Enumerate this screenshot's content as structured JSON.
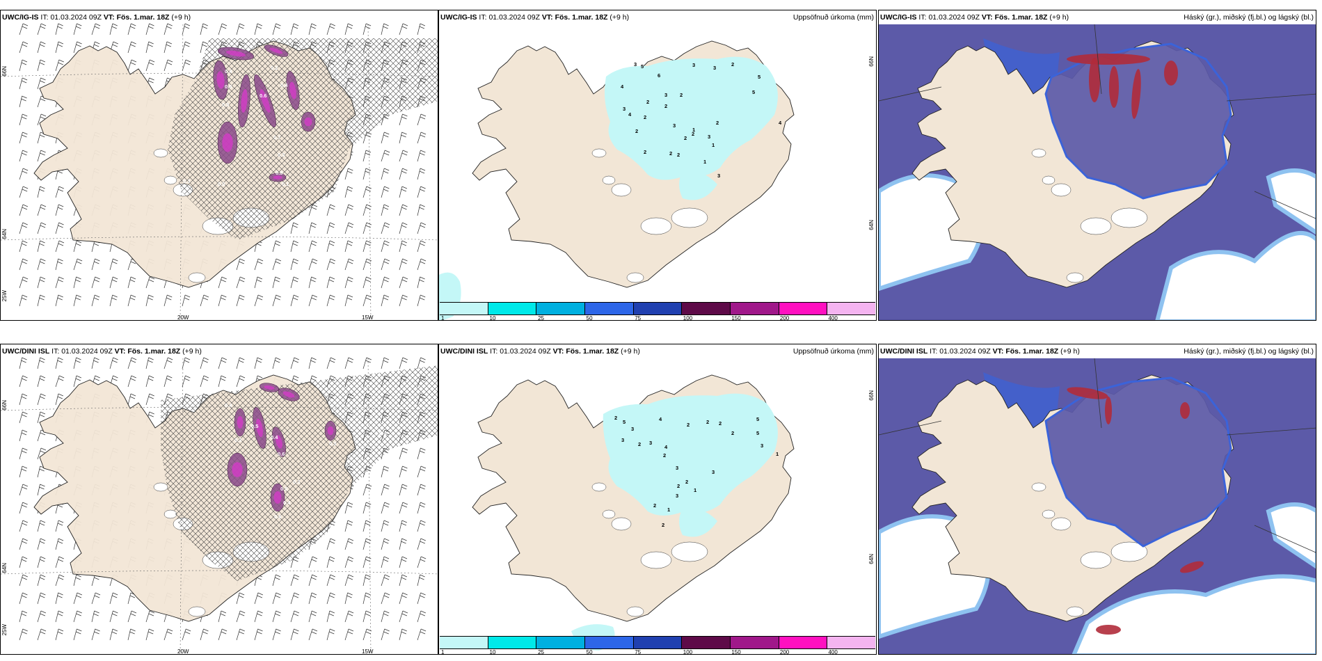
{
  "colors": {
    "land": "#f2e6d6",
    "precip_light": "#c4f7f7",
    "cloud_high": "#5c5aa8",
    "cloud_mid": "#3b63d9",
    "cloud_low": "#8ec2f0",
    "cloud_red": "#b02b3a",
    "purple": "#8a4a8a",
    "purple_bright": "#d33cc7"
  },
  "colorbar": {
    "labels": [
      "1",
      "10",
      "25",
      "50",
      "75",
      "100",
      "150",
      "200",
      "400"
    ],
    "colors": [
      "#c4f7f7",
      "#00e9e9",
      "#00b0e0",
      "#2d66e8",
      "#2040b0",
      "#5e0a48",
      "#a0188a",
      "#ff10c0",
      "#f4b4f0"
    ]
  },
  "rows": [
    {
      "id": "igis",
      "model": "UWC/IG-IS",
      "it_label": "IT:",
      "it_value": "01.03.2024 09Z",
      "vt_label": "VT: Fös. 1.mar. 18Z",
      "lead": "(+9 h)",
      "panels": [
        {
          "kind": "wind",
          "right_title": "",
          "axis": {
            "bottom_left": "20W",
            "bottom_right": "15W",
            "left_top": "66N",
            "left_mid": "64N",
            "left_bottom": "25W",
            "right_top": "",
            "right_mid": ""
          },
          "labels": [
            "0.4",
            "0.2",
            "0.8",
            "0.5",
            "0.6",
            "0.4",
            "0.7",
            "0.3",
            "0.8",
            "0.1",
            "0.0",
            "0.3",
            "0.4",
            "1.0"
          ]
        },
        {
          "kind": "precip",
          "right_title": "Uppsöfnuð úrkoma (mm)",
          "axis": {
            "right_top": "66N",
            "right_mid": "64N"
          },
          "labels": [
            "3",
            "5",
            "6",
            "3",
            "3",
            "2",
            "4",
            "3",
            "2",
            "2",
            "3",
            "4",
            "2",
            "2",
            "3",
            "2",
            "2",
            "3",
            "2",
            "1",
            "1",
            "2",
            "2",
            "2",
            "2",
            "5",
            "5",
            "4",
            "1",
            "3"
          ]
        },
        {
          "kind": "cloud",
          "right_title": "Háský (gr.), miðský (fj.bl.) og lágský (bl.)"
        }
      ]
    },
    {
      "id": "dini",
      "model": "UWC/DINI ISL",
      "it_label": "IT:",
      "it_value": "01.03.2024 09Z",
      "vt_label": "VT: Fös. 1.mar. 18Z",
      "lead": "(+9 h)",
      "panels": [
        {
          "kind": "wind",
          "right_title": "",
          "axis": {
            "bottom_left": "20W",
            "bottom_right": "15W",
            "left_top": "66N",
            "left_mid": "64N",
            "left_bottom": "25W",
            "right_top": "",
            "right_mid": ""
          },
          "labels": [
            "0.4",
            "0.5",
            "0.3",
            "0.4",
            "0.6",
            "0.3",
            "0.5",
            "0.4",
            "0.6",
            "0.3",
            "0.4"
          ]
        },
        {
          "kind": "precip",
          "right_title": "Uppsöfnuð úrkoma (mm)",
          "axis": {
            "right_top": "66N",
            "right_mid": "64N"
          },
          "labels": [
            "2",
            "5",
            "3",
            "4",
            "3",
            "2",
            "3",
            "4",
            "2",
            "3",
            "2",
            "2",
            "3",
            "2",
            "1",
            "1",
            "3",
            "2",
            "2",
            "2",
            "2",
            "5",
            "5",
            "3",
            "1",
            "2"
          ]
        },
        {
          "kind": "cloud",
          "right_title": "Háský (gr.), miðský (fj.bl.) og lágský (bl.)"
        }
      ]
    }
  ]
}
